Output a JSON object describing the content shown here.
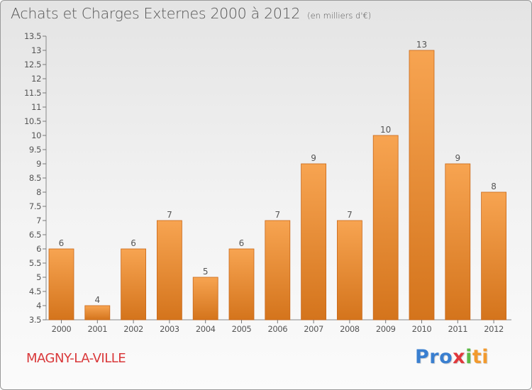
{
  "header": {
    "title": "Achats et Charges Externes 2000 à 2012",
    "unit": "(en milliers d'€)"
  },
  "footer": {
    "town": "MAGNY-LA-VILLE",
    "logo": [
      "Pro",
      "x",
      "i",
      "ti"
    ]
  },
  "colors": {
    "bar_top": "#f7a451",
    "bar_bottom": "#d4741c",
    "bar_edge": "#c9681a",
    "text": "#555555",
    "town": "#d9383a"
  },
  "chart_data": {
    "type": "bar",
    "title": "Achats et Charges Externes 2000 à 2012",
    "unit": "(en milliers d'€)",
    "categories": [
      "2000",
      "2001",
      "2002",
      "2003",
      "2004",
      "2005",
      "2006",
      "2007",
      "2008",
      "2009",
      "2010",
      "2011",
      "2012"
    ],
    "values": [
      6,
      4,
      6,
      7,
      5,
      6,
      7,
      9,
      7,
      10,
      13,
      9,
      8
    ],
    "ylim": [
      3.5,
      13.5
    ],
    "yticks": [
      "3.5",
      "4",
      "4.5",
      "5",
      "5.5",
      "6",
      "6.5",
      "7",
      "7.5",
      "8",
      "8.5",
      "9",
      "9.5",
      "10",
      "10.5",
      "11",
      "11.5",
      "12",
      "12.5",
      "13",
      "13.5"
    ],
    "grid": false,
    "legend": "none"
  }
}
